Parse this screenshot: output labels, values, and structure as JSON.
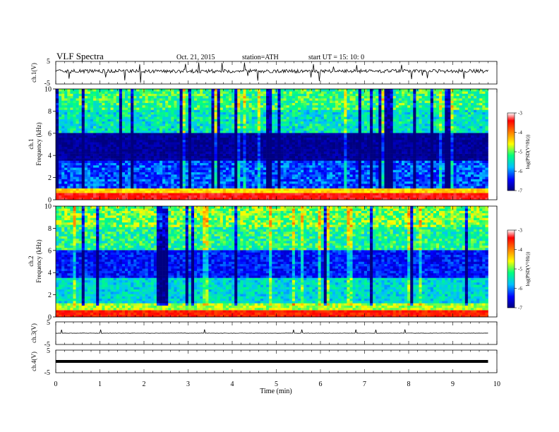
{
  "header": {
    "title": "VLF  Spectra",
    "date": "Oct. 21, 2015",
    "station": "station=ATH",
    "start": "start  UT  =   15: 10: 0"
  },
  "chart_data": [
    {
      "type": "line",
      "name": "ch1-waveform",
      "ylabel": "ch.1(V)",
      "ylim": [
        -5,
        5
      ],
      "yticks": [
        "5",
        "-5"
      ],
      "xlim": [
        0,
        10
      ],
      "baseline": 0.7
    },
    {
      "type": "heatmap",
      "name": "ch1-spectrogram",
      "ylabel_top": "ch.1",
      "ylabel": "Frequency  (kHz)",
      "ylim": [
        0,
        10
      ],
      "yticks": [
        "0",
        "2",
        "4",
        "6",
        "8",
        "10"
      ],
      "xlim": [
        0,
        10
      ],
      "data_end_minutes": 9.8
    },
    {
      "type": "heatmap",
      "name": "ch2-spectrogram",
      "ylabel_top": "ch.2",
      "ylabel": "Frequency  (kHz)",
      "ylim": [
        0,
        10
      ],
      "yticks": [
        "0",
        "2",
        "4",
        "6",
        "8",
        "10"
      ],
      "xlim": [
        0,
        10
      ],
      "data_end_minutes": 9.8
    },
    {
      "type": "line",
      "name": "ch3-waveform",
      "ylabel": "ch.3(V)",
      "ylim": [
        -5,
        5
      ],
      "yticks": [
        "5",
        "-5"
      ],
      "xlim": [
        0,
        10
      ],
      "baseline": 0
    },
    {
      "type": "line",
      "name": "ch4-waveform",
      "ylabel": "ch.4(V)",
      "ylim": [
        -5,
        5
      ],
      "yticks": [
        "5",
        "-5"
      ],
      "xlim": [
        0,
        10
      ],
      "baseline": 0,
      "xlabel": "Time  (min)",
      "xticks": [
        "0",
        "1",
        "2",
        "3",
        "4",
        "5",
        "6",
        "7",
        "8",
        "9",
        "10"
      ]
    }
  ],
  "colorbar": {
    "label": "log(PSD(V²/Hz))",
    "range": [
      -7,
      -3
    ],
    "ticks": [
      "-3",
      "-4",
      "-5",
      "-6",
      "-7"
    ],
    "stops": [
      "#000080",
      "#0000ff",
      "#00c0ff",
      "#00ff80",
      "#ffff00",
      "#ff8000",
      "#ff0000",
      "#ffffff"
    ]
  }
}
